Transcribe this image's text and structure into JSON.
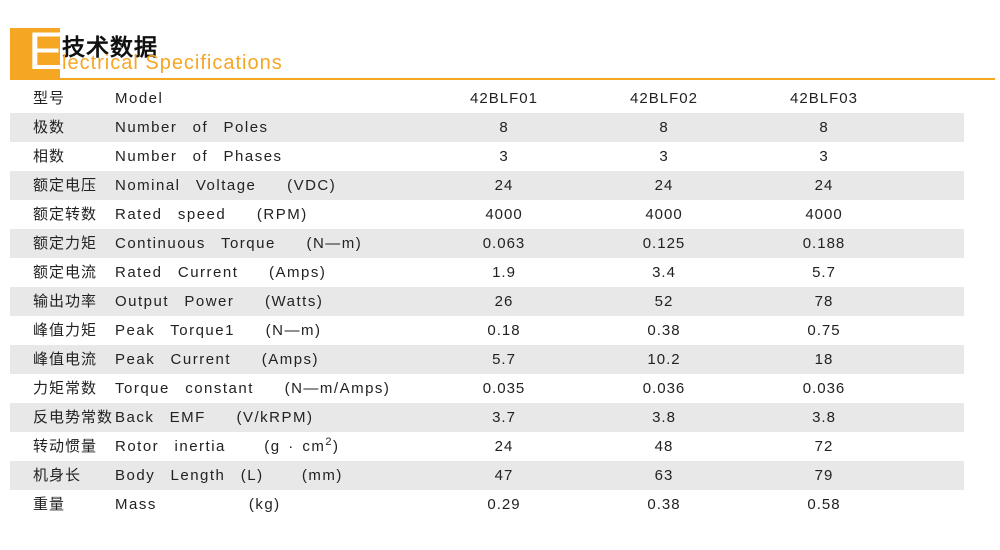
{
  "header": {
    "letter": "E",
    "title_cn": "技术数据",
    "title_en": "lectrical  Specifications",
    "accent_color": "#f5a623"
  },
  "table": {
    "columns": [
      "42BLF01",
      "42BLF02",
      "42BLF03"
    ],
    "rows": [
      {
        "cn": "型号",
        "en": "Model",
        "values": [
          "42BLF01",
          "42BLF02",
          "42BLF03"
        ]
      },
      {
        "cn": "极数",
        "en": "Number  of  Poles",
        "values": [
          "8",
          "8",
          "8"
        ]
      },
      {
        "cn": "相数",
        "en": "Number  of  Phases",
        "values": [
          "3",
          "3",
          "3"
        ]
      },
      {
        "cn": "额定电压",
        "en": "Nominal  Voltage    (VDC)",
        "values": [
          "24",
          "24",
          "24"
        ]
      },
      {
        "cn": "额定转数",
        "en": "Rated  speed    (RPM)",
        "values": [
          "4000",
          "4000",
          "4000"
        ]
      },
      {
        "cn": "额定力矩",
        "en": "Continuous  Torque    (N—m)",
        "values": [
          "0.063",
          "0.125",
          "0.188"
        ]
      },
      {
        "cn": "额定电流",
        "en": "Rated  Current    (Amps)",
        "values": [
          "1.9",
          "3.4",
          "5.7"
        ]
      },
      {
        "cn": "输出功率",
        "en": "Output  Power    (Watts)",
        "values": [
          "26",
          "52",
          "78"
        ]
      },
      {
        "cn": "峰值力矩",
        "en": "Peak  Torque1    (N—m)",
        "values": [
          "0.18",
          "0.38",
          "0.75"
        ]
      },
      {
        "cn": "峰值电流",
        "en": "Peak  Current    (Amps)",
        "values": [
          "5.7",
          "10.2",
          "18"
        ]
      },
      {
        "cn": "力矩常数",
        "en": "Torque  constant    (N—m/Amps)",
        "values": [
          "0.035",
          "0.036",
          "0.036"
        ]
      },
      {
        "cn": "反电势常数",
        "en": "Back  EMF    (V/kRPM)",
        "values": [
          "3.7",
          "3.8",
          "3.8"
        ]
      },
      {
        "cn": "转动惯量",
        "en": "Rotor  inertia     (g · cm",
        "en_sup": "2",
        "en_after": ")",
        "values": [
          "24",
          "48",
          "72"
        ]
      },
      {
        "cn": "机身长",
        "en": "Body  Length  (L)     (mm)",
        "values": [
          "47",
          "63",
          "79"
        ]
      },
      {
        "cn": "重量",
        "en": "Mass            (kg)",
        "values": [
          "0.29",
          "0.38",
          "0.58"
        ]
      }
    ]
  }
}
